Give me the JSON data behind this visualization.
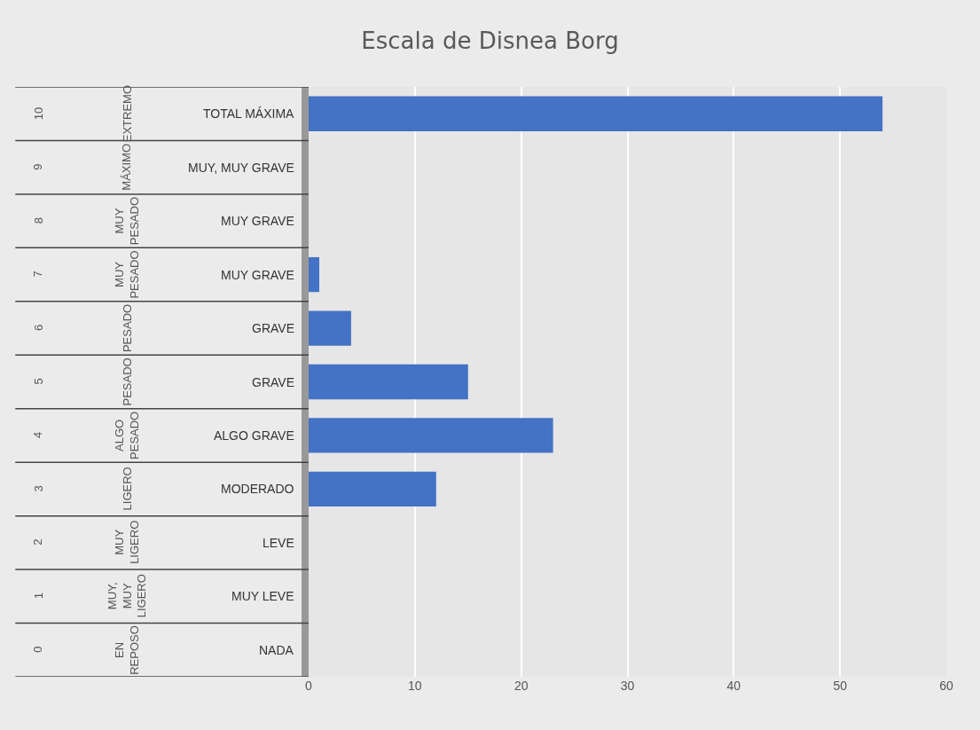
{
  "chart_data": {
    "type": "bar",
    "orientation": "horizontal",
    "title": "Escala de Disnea Borg",
    "categories": [
      "10\nEXTREMO\nTOTAL MÁXIMA",
      "9\nMÁXIMO\nMUY, MUY GRAVE",
      "8\nMUY PESADO\nMUY GRAVE",
      "7\nMUY PESADO\nMUY GRAVE",
      "6\nPESADO\nGRAVE",
      "5\nPESADO\nGRAVE",
      "4\nALGO PESADO\nALGO GRAVE",
      "3\nLIGERO\nMODERADO",
      "2\nMUY LIGERO\nLEVE",
      "1\nMUY, MUY LIGERO\nMUY LEVE",
      "0\nEN REPOSO\nNADA"
    ],
    "values": [
      54,
      0,
      0,
      1,
      4,
      15,
      23,
      12,
      0,
      0,
      0
    ],
    "color": "#4472c4",
    "xlim": [
      0,
      60
    ],
    "xticks": [
      0,
      10,
      20,
      30,
      40,
      50,
      60
    ],
    "grid": "x"
  }
}
